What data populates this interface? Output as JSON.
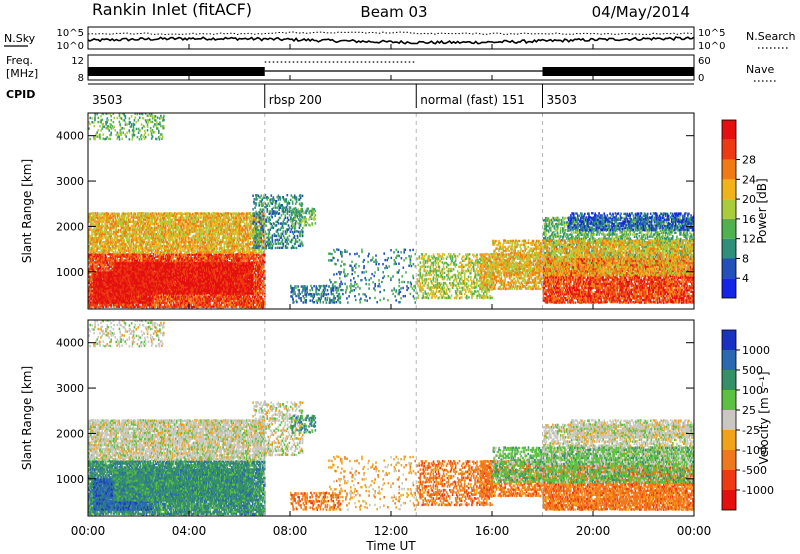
{
  "header": {
    "station": "Rankin Inlet (fitACF)",
    "beam": "Beam 03",
    "date": "04/May/2014"
  },
  "side_labels": {
    "nsky": "N.Sky",
    "nsearch": "N.Search",
    "freq_line1": "Freq.",
    "freq_line2": "[MHz]",
    "nave": "Nave",
    "cpid": "CPID"
  },
  "noise_panel": {
    "tick_top_left": "10^5",
    "tick_bottom_left": "10^0",
    "tick_top_right": "10^5",
    "tick_bottom_right": "10^0"
  },
  "freq_panel": {
    "tick_top_left": "12",
    "tick_bottom_left": "8",
    "tick_top_right": "60",
    "tick_bottom_right": "0"
  },
  "cpid_segments": [
    {
      "label": "3503",
      "start_h": 0,
      "end_h": 7
    },
    {
      "label": "rbsp 200",
      "start_h": 7,
      "end_h": 13
    },
    {
      "label": "normal (fast) 151",
      "start_h": 13,
      "end_h": 18
    },
    {
      "label": "3503",
      "start_h": 18,
      "end_h": 24
    }
  ],
  "chart_data": [
    {
      "type": "heatmap",
      "parameter": "power",
      "ylabel": "Slant Range [km]",
      "ylim": [
        180,
        4500
      ],
      "xlim_hours": [
        0,
        24
      ],
      "yticks": [
        "1000",
        "2000",
        "3000",
        "4000"
      ],
      "colorbar_label": "Power [dB]",
      "colorbar_ticks": [
        "4",
        "8",
        "12",
        "16",
        "20",
        "24",
        "28"
      ],
      "colorbar_colors": [
        "#1525e6",
        "#2050b8",
        "#2f8f78",
        "#4fb24f",
        "#a8cc3a",
        "#f2b21a",
        "#f07a14",
        "#ee3a12",
        "#e41010"
      ]
    },
    {
      "type": "heatmap",
      "parameter": "velocity",
      "ylabel": "Slant Range [km]",
      "xlabel": "Time UT",
      "ylim": [
        180,
        4500
      ],
      "xlim_hours": [
        0,
        24
      ],
      "xticks": [
        "00:00",
        "04:00",
        "08:00",
        "12:00",
        "16:00",
        "20:00",
        "00:00"
      ],
      "yticks": [
        "1000",
        "2000",
        "3000",
        "4000"
      ],
      "colorbar_label": "Velocity [m s⁻¹]",
      "colorbar_ticks": [
        "1000",
        "500",
        "100",
        "25",
        "-25",
        "-100",
        "-500",
        "-1000"
      ],
      "colorbar_colors": [
        "#1a32c0",
        "#2a68b0",
        "#35906a",
        "#5cc040",
        "#c8c8c0",
        "#f2a218",
        "#f0781c",
        "#ee3a12",
        "#e41010"
      ]
    }
  ]
}
